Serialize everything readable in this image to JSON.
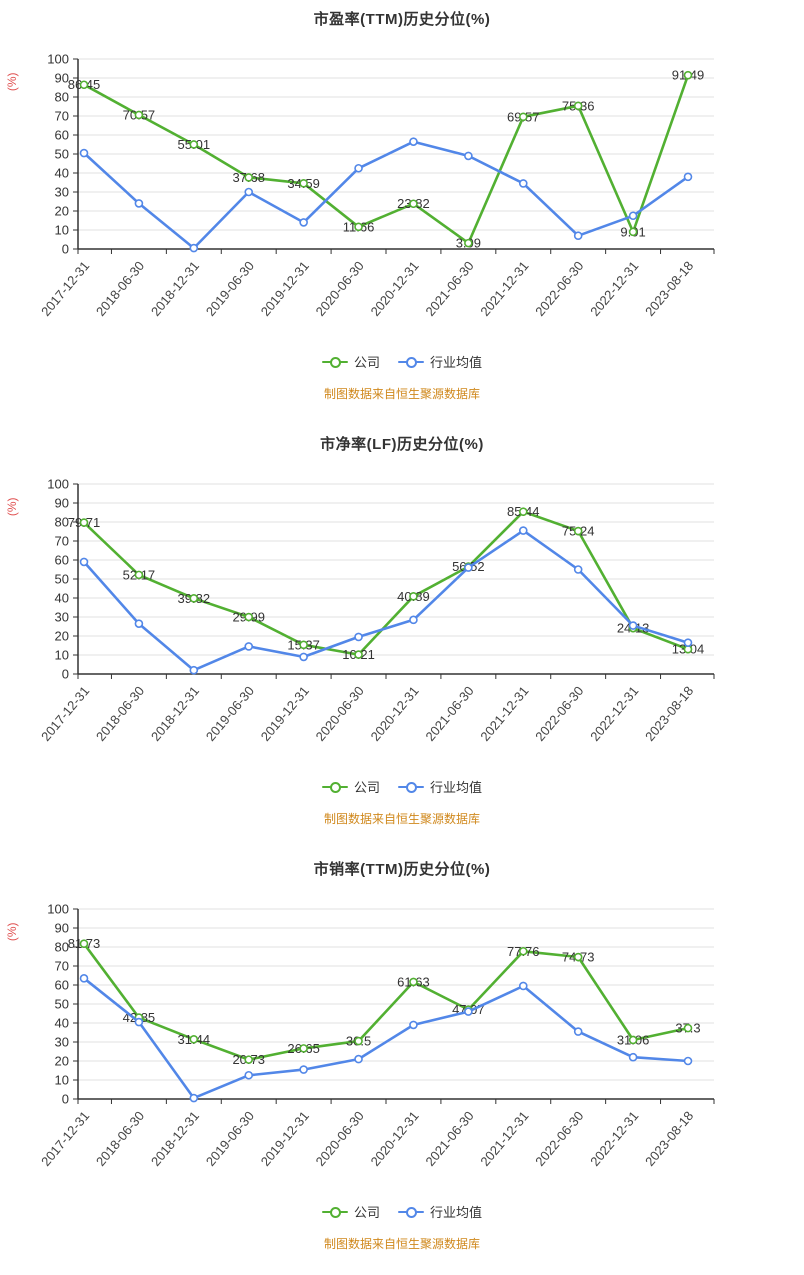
{
  "colors": {
    "company_series": "#52b032",
    "industry_series": "#5287e8",
    "percent_axis_label": "#e05252",
    "source_note": "#d0881c"
  },
  "legend": {
    "company_label": "公司",
    "industry_label": "行业均值"
  },
  "chart_data": [
    {
      "type": "line",
      "title": "市盈率(TTM)历史分位(%)",
      "ylabel": "(%)",
      "ylim": [
        0,
        100
      ],
      "y_tick_step": 10,
      "grid": true,
      "legend_position": "bottom",
      "source_note": "制图数据来自恒生聚源数据库",
      "categories": [
        "2017-12-31",
        "2018-06-30",
        "2018-12-31",
        "2019-06-30",
        "2019-12-31",
        "2020-06-30",
        "2020-12-31",
        "2021-06-30",
        "2021-12-31",
        "2022-06-30",
        "2022-12-31",
        "2023-08-18"
      ],
      "series": [
        {
          "name": "公司",
          "color": "#52b032",
          "show_labels": true,
          "values": [
            86.45,
            70.57,
            55.01,
            37.68,
            34.59,
            11.66,
            23.82,
            3.09,
            69.57,
            75.36,
            9.01,
            91.49
          ]
        },
        {
          "name": "行业均值",
          "color": "#5287e8",
          "show_labels": false,
          "values": [
            50.5,
            24,
            0.5,
            30,
            14,
            42.5,
            56.5,
            49,
            34.5,
            7,
            17.5,
            38
          ]
        }
      ]
    },
    {
      "type": "line",
      "title": "市净率(LF)历史分位(%)",
      "ylabel": "(%)",
      "ylim": [
        0,
        100
      ],
      "y_tick_step": 10,
      "grid": true,
      "legend_position": "bottom",
      "source_note": "制图数据来自恒生聚源数据库",
      "categories": [
        "2017-12-31",
        "2018-06-30",
        "2018-12-31",
        "2019-06-30",
        "2019-12-31",
        "2020-06-30",
        "2020-12-31",
        "2021-06-30",
        "2021-12-31",
        "2022-06-30",
        "2022-12-31",
        "2023-08-18"
      ],
      "series": [
        {
          "name": "公司",
          "color": "#52b032",
          "show_labels": true,
          "values": [
            79.71,
            52.17,
            39.82,
            29.99,
            15.37,
            10.21,
            40.89,
            56.52,
            85.44,
            75.24,
            24.13,
            13.04
          ]
        },
        {
          "name": "行业均值",
          "color": "#5287e8",
          "show_labels": false,
          "values": [
            59,
            26.5,
            2,
            14.5,
            9,
            19.5,
            28.5,
            56,
            75.5,
            55,
            25.5,
            16.5
          ]
        }
      ]
    },
    {
      "type": "line",
      "title": "市销率(TTM)历史分位(%)",
      "ylabel": "(%)",
      "ylim": [
        0,
        100
      ],
      "y_tick_step": 10,
      "grid": true,
      "legend_position": "bottom",
      "source_note": "制图数据来自恒生聚源数据库",
      "categories": [
        "2017-12-31",
        "2018-06-30",
        "2018-12-31",
        "2019-06-30",
        "2019-12-31",
        "2020-06-30",
        "2020-12-31",
        "2021-06-30",
        "2021-12-31",
        "2022-06-30",
        "2022-12-31",
        "2023-08-18"
      ],
      "series": [
        {
          "name": "公司",
          "color": "#52b032",
          "show_labels": true,
          "values": [
            81.73,
            42.85,
            31.44,
            20.73,
            26.65,
            30.5,
            61.63,
            47.07,
            77.76,
            74.73,
            31.06,
            37.3
          ]
        },
        {
          "name": "行业均值",
          "color": "#5287e8",
          "show_labels": false,
          "values": [
            63.5,
            40.5,
            0.5,
            12.5,
            15.5,
            21,
            39,
            46,
            59.5,
            35.5,
            22,
            20
          ]
        }
      ]
    }
  ]
}
